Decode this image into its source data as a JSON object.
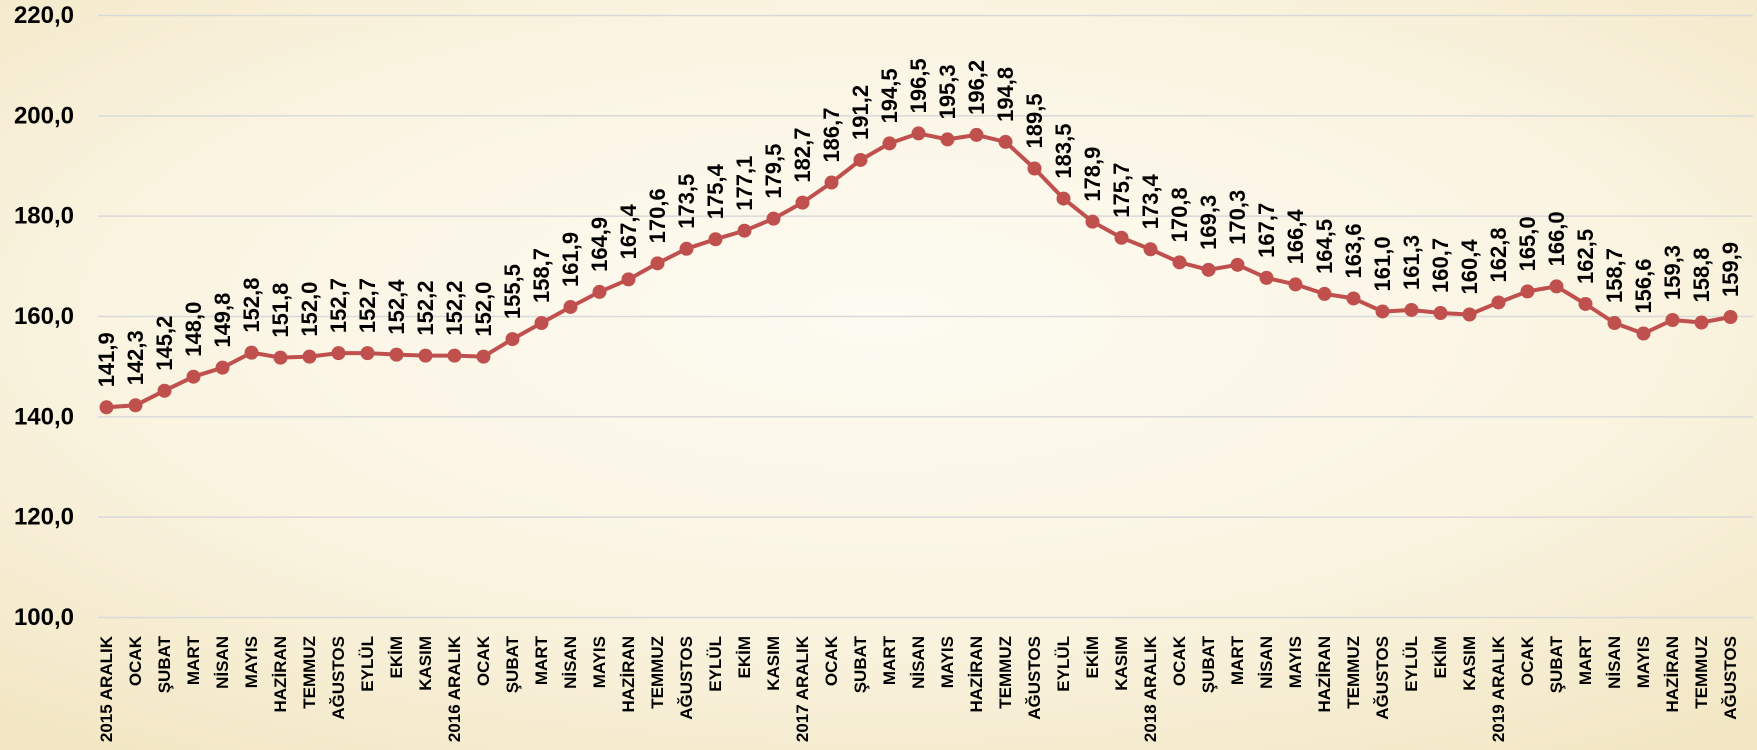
{
  "chart_data": {
    "type": "line",
    "categories": [
      "2015 ARALIK",
      "OCAK",
      "ŞUBAT",
      "MART",
      "NİSAN",
      "MAYIS",
      "HAZİRAN",
      "TEMMUZ",
      "AĞUSTOS",
      "EYLÜL",
      "EKİM",
      "KASIM",
      "2016 ARALIK",
      "OCAK",
      "ŞUBAT",
      "MART",
      "NİSAN",
      "MAYIS",
      "HAZİRAN",
      "TEMMUZ",
      "AĞUSTOS",
      "EYLÜL",
      "EKİM",
      "KASIM",
      "2017 ARALIK",
      "OCAK",
      "ŞUBAT",
      "MART",
      "NİSAN",
      "MAYIS",
      "HAZİRAN",
      "TEMMUZ",
      "AĞUSTOS",
      "EYLÜL",
      "EKİM",
      "KASIM",
      "2018 ARALIK",
      "OCAK",
      "ŞUBAT",
      "MART",
      "NİSAN",
      "MAYIS",
      "HAZİRAN",
      "TEMMUZ",
      "AĞUSTOS",
      "EYLÜL",
      "EKİM",
      "KASIM",
      "2019 ARALIK",
      "OCAK",
      "ŞUBAT",
      "MART",
      "NİSAN",
      "MAYIS",
      "HAZİRAN",
      "TEMMUZ",
      "AĞUSTOS"
    ],
    "series": [
      {
        "values": [
          141.9,
          142.3,
          145.2,
          148.0,
          149.8,
          152.8,
          151.8,
          152.0,
          152.7,
          152.7,
          152.4,
          152.2,
          152.2,
          152.0,
          155.5,
          158.7,
          161.9,
          164.9,
          167.4,
          170.6,
          173.5,
          175.4,
          177.1,
          179.5,
          182.7,
          186.7,
          191.2,
          194.5,
          196.5,
          195.3,
          196.2,
          194.8,
          189.5,
          183.5,
          178.9,
          175.7,
          173.4,
          170.8,
          169.3,
          170.3,
          167.7,
          166.4,
          164.5,
          163.6,
          161.0,
          161.3,
          160.7,
          160.4,
          162.8,
          165.0,
          166.0,
          162.5,
          158.7,
          156.6,
          159.3,
          158.8,
          159.9
        ]
      }
    ],
    "data_labels": [
      "141,9",
      "142,3",
      "145,2",
      "148,0",
      "149,8",
      "152,8",
      "151,8",
      "152,0",
      "152,7",
      "152,7",
      "152,4",
      "152,2",
      "152,2",
      "152,0",
      "155,5",
      "158,7",
      "161,9",
      "164,9",
      "167,4",
      "170,6",
      "173,5",
      "175,4",
      "177,1",
      "179,5",
      "182,7",
      "186,7",
      "191,2",
      "194,5",
      "196,5",
      "195,3",
      "196,2",
      "194,8",
      "189,5",
      "183,5",
      "178,9",
      "175,7",
      "173,4",
      "170,8",
      "169,3",
      "170,3",
      "167,7",
      "166,4",
      "164,5",
      "163,6",
      "161,0",
      "161,3",
      "160,7",
      "160,4",
      "162,8",
      "165,0",
      "166,0",
      "162,5",
      "158,7",
      "156,6",
      "159,3",
      "158,8",
      "159,9"
    ],
    "ylim": [
      100,
      220
    ],
    "yticks": [
      100,
      120,
      140,
      160,
      180,
      200,
      220
    ],
    "ytick_labels": [
      "100,0",
      "120,0",
      "140,0",
      "160,0",
      "180,0",
      "200,0",
      "220,0"
    ],
    "grid": true,
    "legend": false,
    "markers": true
  },
  "colors": {
    "series": "#c0504d",
    "grid": "#d9d9d9",
    "text": "#000000",
    "background": "#faf4e0"
  }
}
